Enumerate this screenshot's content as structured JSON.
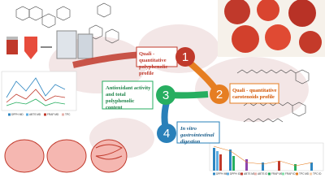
{
  "steps": [
    {
      "number": "1",
      "label": "Quali - quantitative polyphenolic profile"
    },
    {
      "number": "2",
      "label": "Quali - quantitative carotenoids profile"
    },
    {
      "number": "3",
      "label": "Antioxidant activity and total polyphenolic content"
    },
    {
      "number": "4",
      "label": "In vitro gastrointestinal digestion"
    }
  ],
  "left_chart_legend": [
    "DPPH MD",
    "ABTS MD",
    "FRAP MD",
    "TPC"
  ],
  "right_chart_legend": [
    "DPPH MD",
    "DPPH ID",
    "ABTS MD",
    "ABTS ID",
    "FRAP MD",
    "FRAP ID",
    "TPC MD",
    "TPC ID"
  ]
}
